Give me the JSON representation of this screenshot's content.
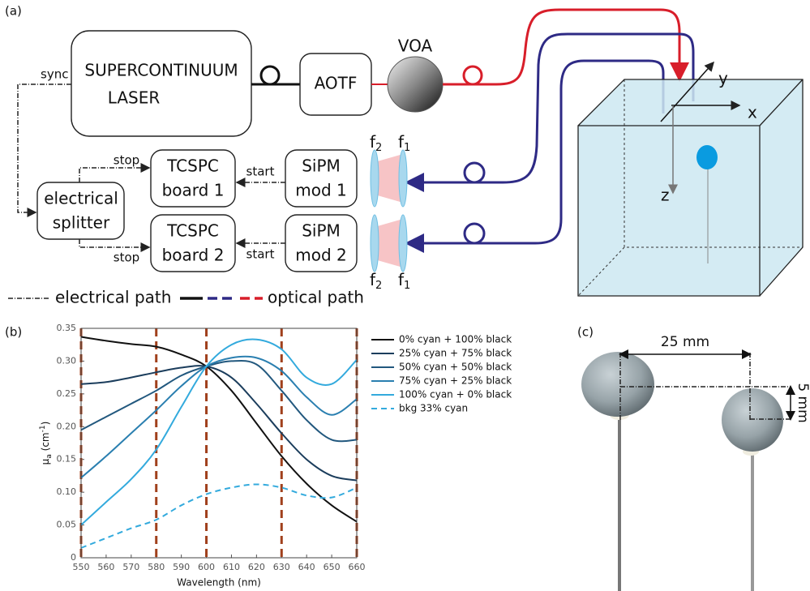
{
  "panel_labels": [
    "(a)",
    "(b)",
    "(c)"
  ],
  "diagram": {
    "sync": "sync",
    "laser": [
      "SUPERCONTINUUM",
      "LASER"
    ],
    "aotf": "AOTF",
    "voa": "VOA",
    "splitter": [
      "electrical",
      "splitter"
    ],
    "tcspc": [
      [
        "TCSPC",
        "board 1"
      ],
      [
        "TCSPC",
        "board 2"
      ]
    ],
    "sipm": [
      [
        "SiPM",
        "mod 1"
      ],
      [
        "SiPM",
        "mod 2"
      ]
    ],
    "stop": [
      "stop",
      "stop"
    ],
    "start": [
      "start",
      "start"
    ],
    "lens_labels": [
      {
        "symbol": "f",
        "sub": "2"
      },
      {
        "symbol": "f",
        "sub": "1"
      },
      {
        "symbol": "f",
        "sub": "2"
      },
      {
        "symbol": "f",
        "sub": "1"
      }
    ],
    "axes": [
      "x",
      "y",
      "z"
    ],
    "legend": [
      "electrical path",
      "optical path"
    ]
  },
  "photo": {
    "width": "25 mm",
    "height": "5 mm"
  },
  "chart_data": {
    "type": "line",
    "x_label": "Wavelength (nm)",
    "y_label": {
      "symbol": "μ",
      "sub": "a",
      "unit": " (cm",
      "exp": "-1",
      "close": ")"
    },
    "x": [
      550,
      560,
      570,
      580,
      590,
      600,
      610,
      620,
      630,
      640,
      650,
      660
    ],
    "xlim": [
      550,
      660
    ],
    "xticks": [
      550,
      560,
      570,
      580,
      590,
      600,
      610,
      620,
      630,
      640,
      650,
      660
    ],
    "ylim": [
      0,
      0.35
    ],
    "yticks": [
      0,
      0.05,
      {
        "value": 0.1,
        "label": "0.10"
      },
      0.15,
      {
        "value": 0.2,
        "label": "0.20"
      },
      0.25,
      {
        "value": 0.3,
        "label": "0.30"
      },
      0.35
    ],
    "reference_lines": [
      550,
      580,
      600,
      630,
      660
    ],
    "reference_color": "#a0401c",
    "series": [
      {
        "name": "0% cyan + 100% black",
        "color": "#111111",
        "values": [
          0.337,
          0.331,
          0.326,
          0.322,
          0.31,
          0.292,
          0.255,
          0.205,
          0.155,
          0.113,
          0.08,
          0.055
        ]
      },
      {
        "name": "25% cyan + 75% black",
        "color": "#1b3d5c",
        "values": [
          0.265,
          0.268,
          0.275,
          0.283,
          0.29,
          0.292,
          0.275,
          0.235,
          0.19,
          0.15,
          0.125,
          0.118
        ]
      },
      {
        "name": "50% cyan + 50% black",
        "color": "#22587e",
        "values": [
          0.195,
          0.215,
          0.235,
          0.255,
          0.278,
          0.292,
          0.3,
          0.295,
          0.255,
          0.21,
          0.18,
          0.18
        ]
      },
      {
        "name": "75% cyan + 25% black",
        "color": "#2a7fb0",
        "values": [
          0.122,
          0.155,
          0.19,
          0.225,
          0.262,
          0.292,
          0.305,
          0.305,
          0.285,
          0.245,
          0.218,
          0.242
        ]
      },
      {
        "name": "100% cyan + 0% black",
        "color": "#33aadd",
        "values": [
          0.05,
          0.085,
          0.12,
          0.165,
          0.23,
          0.292,
          0.325,
          0.333,
          0.318,
          0.275,
          0.265,
          0.302
        ]
      },
      {
        "name": "bkg 33% cyan",
        "color": "#33aadd",
        "style": "dashed",
        "values": [
          0.015,
          0.03,
          0.045,
          0.058,
          0.08,
          0.097,
          0.107,
          0.112,
          0.107,
          0.095,
          0.092,
          0.107
        ]
      }
    ]
  }
}
